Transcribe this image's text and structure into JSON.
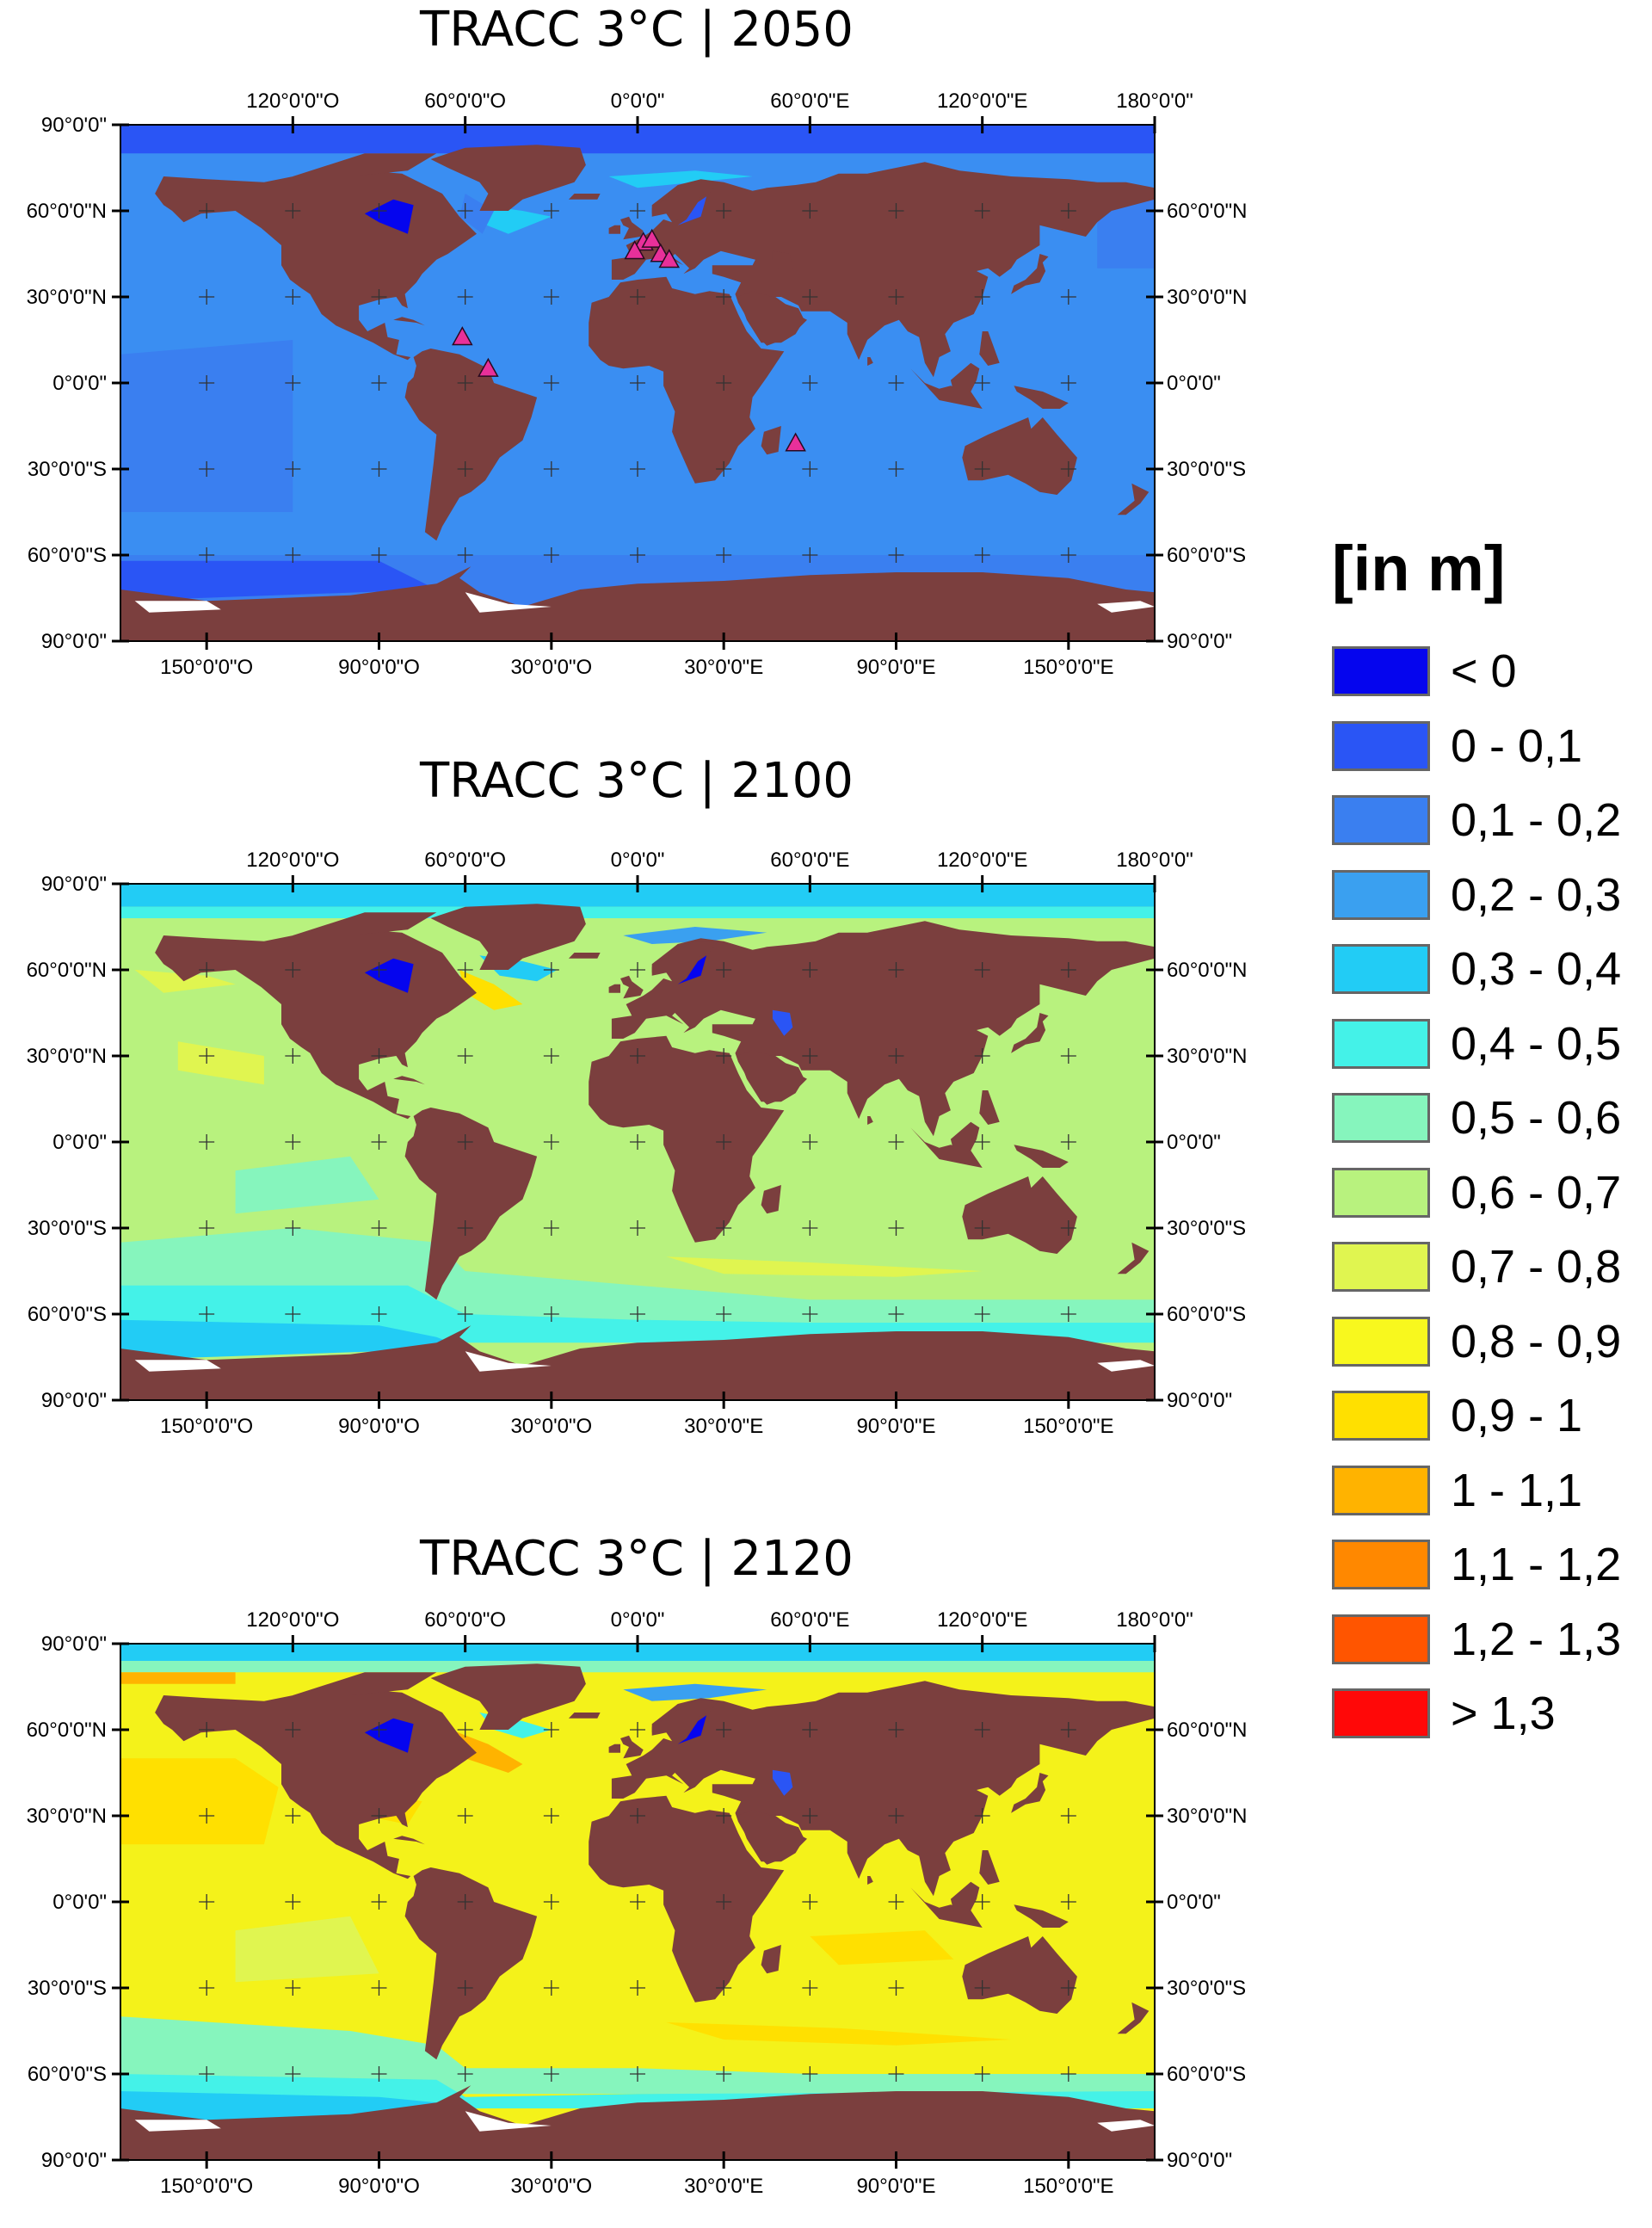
{
  "maps": [
    {
      "title": "TRACC 3°C | 2050",
      "scenario": "2050",
      "ocean_base": "#3a8ef2",
      "markers": [
        {
          "lon": -61,
          "lat": 16
        },
        {
          "lon": -52,
          "lat": 5
        },
        {
          "lon": 2,
          "lat": 49
        },
        {
          "lon": -1,
          "lat": 46
        },
        {
          "lon": 5,
          "lat": 50
        },
        {
          "lon": 8,
          "lat": 45
        },
        {
          "lon": 11,
          "lat": 43
        },
        {
          "lon": 55,
          "lat": -21
        }
      ]
    },
    {
      "title": "TRACC 3°C | 2100",
      "scenario": "2100",
      "ocean_base": "#b8f27e",
      "markers": []
    },
    {
      "title": "TRACC 3°C | 2120",
      "scenario": "2120",
      "ocean_base": "#f4f21a",
      "markers": []
    }
  ],
  "axes": {
    "top": [
      "120°0'0\"O",
      "60°0'0\"O",
      "0°0'0\"",
      "60°0'0\"E",
      "120°0'0\"E",
      "180°0'0\""
    ],
    "bottom": [
      "150°0'0\"O",
      "90°0'0\"O",
      "30°0'0\"O",
      "30°0'0\"E",
      "90°0'0\"E",
      "150°0'0\"E"
    ],
    "left": [
      "90°0'0\"",
      "60°0'0\"N",
      "30°0'0\"N",
      "0°0'0\"",
      "30°0'0\"S",
      "60°0'0\"S",
      "90°0'0\""
    ],
    "right": [
      "60°0'0\"N",
      "30°0'0\"N",
      "0°0'0\"",
      "30°0'0\"S",
      "60°0'0\"S",
      "90°0'0\""
    ]
  },
  "colors": {
    "land": "#7b3f3e",
    "ice": "#ffffff",
    "marker": "#e8309a"
  },
  "legend": {
    "title": "[in m]",
    "items": [
      {
        "label": "< 0",
        "color": "#0505ee"
      },
      {
        "label": "0 - 0,1",
        "color": "#2a55f5"
      },
      {
        "label": "0,1 - 0,2",
        "color": "#3a7ff0"
      },
      {
        "label": "0,2 - 0,3",
        "color": "#3aa0f0"
      },
      {
        "label": "0,3 - 0,4",
        "color": "#22ccf5"
      },
      {
        "label": "0,4 - 0,5",
        "color": "#44f2e8"
      },
      {
        "label": "0,5 - 0,6",
        "color": "#86f5bd"
      },
      {
        "label": "0,6 - 0,7",
        "color": "#b8f27e"
      },
      {
        "label": "0,7 - 0,8",
        "color": "#e0f550"
      },
      {
        "label": "0,8 - 0,9",
        "color": "#f8f81e"
      },
      {
        "label": "0,9 - 1",
        "color": "#ffe000"
      },
      {
        "label": "1 - 1,1",
        "color": "#ffb300"
      },
      {
        "label": "1,1 - 1,2",
        "color": "#ff8800"
      },
      {
        "label": "1,2 - 1,3",
        "color": "#ff5500"
      },
      {
        "label": "> 1,3",
        "color": "#ff0808"
      }
    ]
  }
}
